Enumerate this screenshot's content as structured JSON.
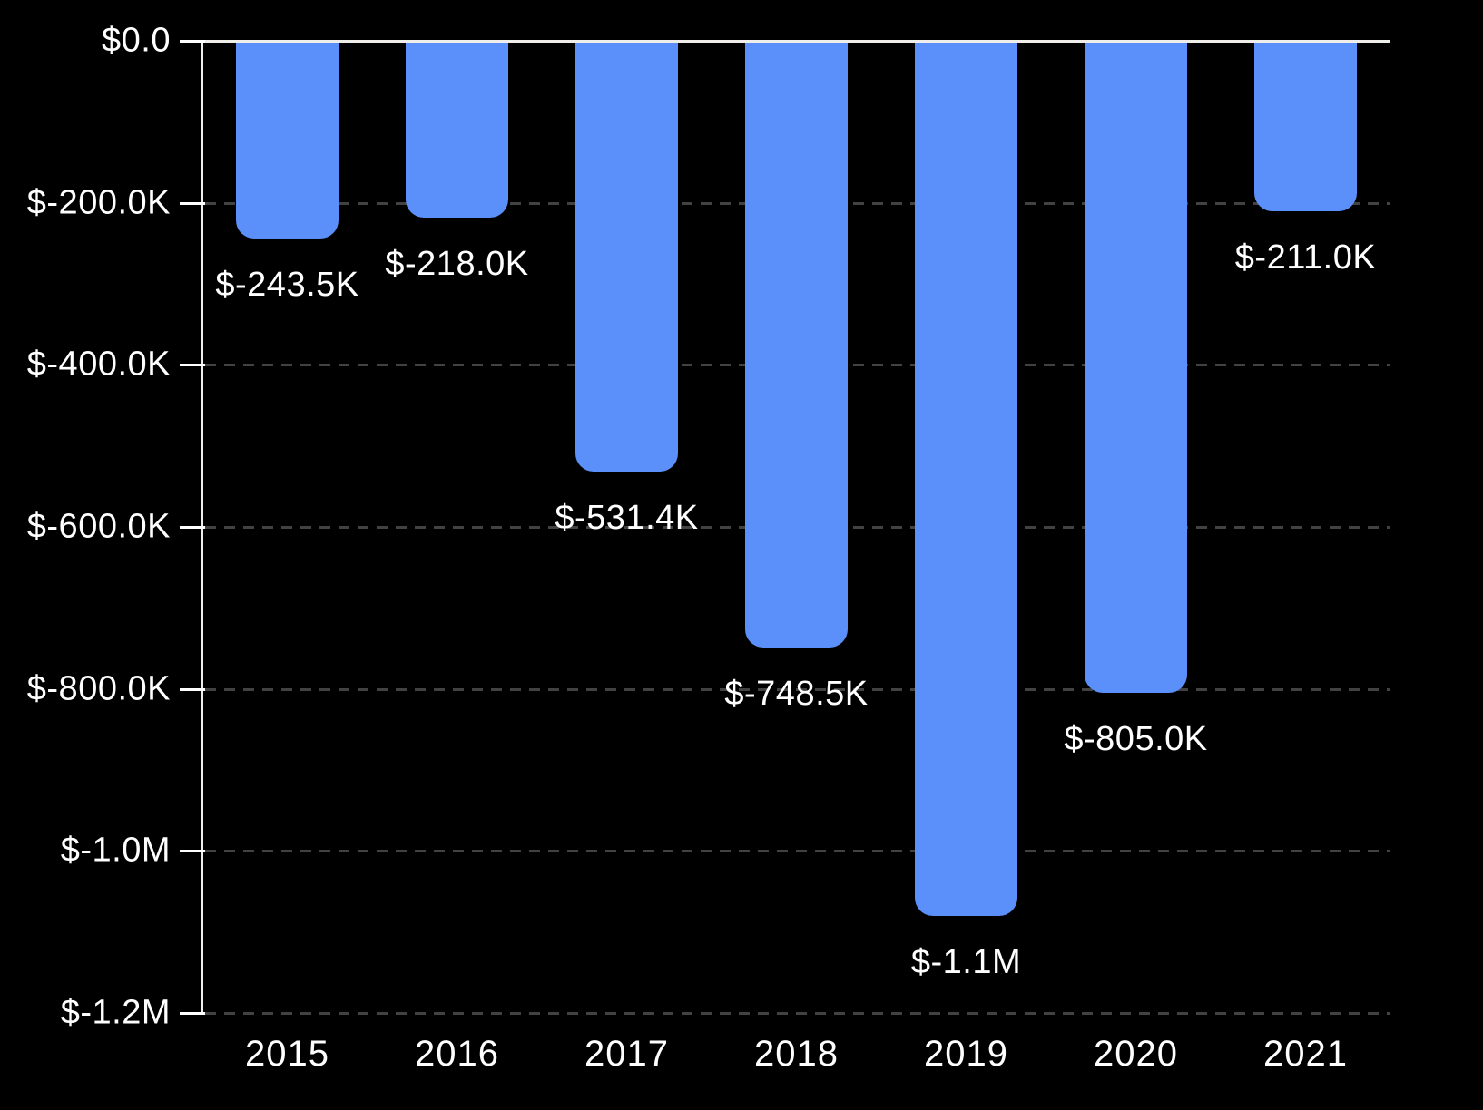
{
  "chart_data": {
    "type": "bar",
    "title": "",
    "subtitle": "",
    "xlabel": "",
    "ylabel": "",
    "categories": [
      "2015",
      "2016",
      "2017",
      "2018",
      "2019",
      "2020",
      "2021"
    ],
    "values": [
      -243500,
      -218000,
      -531400,
      -748500,
      -1080000,
      -805000,
      -211000
    ],
    "bar_labels": [
      "$-243.5K",
      "$-218.0K",
      "$-531.4K",
      "$-748.5K",
      "$-1.1M",
      "$-805.0K",
      "$-211.0K"
    ],
    "ylim": [
      -1200000,
      0
    ],
    "yticks": {
      "values": [
        0,
        -200000,
        -400000,
        -600000,
        -800000,
        -1000000,
        -1200000
      ],
      "labels": [
        "$0.0",
        "$-200.0K",
        "$-400.0K",
        "$-600.0K",
        "$-800.0K",
        "$-1.0M",
        "$-1.2M"
      ]
    },
    "grid": "horizontal-dashed",
    "legend": "none",
    "bar_corner_style": "rounded-bottom",
    "colors": {
      "background": "#000000",
      "bar": "#5B8FF9",
      "gridline": "#424242",
      "axis_line": "#F0EEEB",
      "tick": "#FFFFFF",
      "text": "#FFFFFF"
    }
  }
}
